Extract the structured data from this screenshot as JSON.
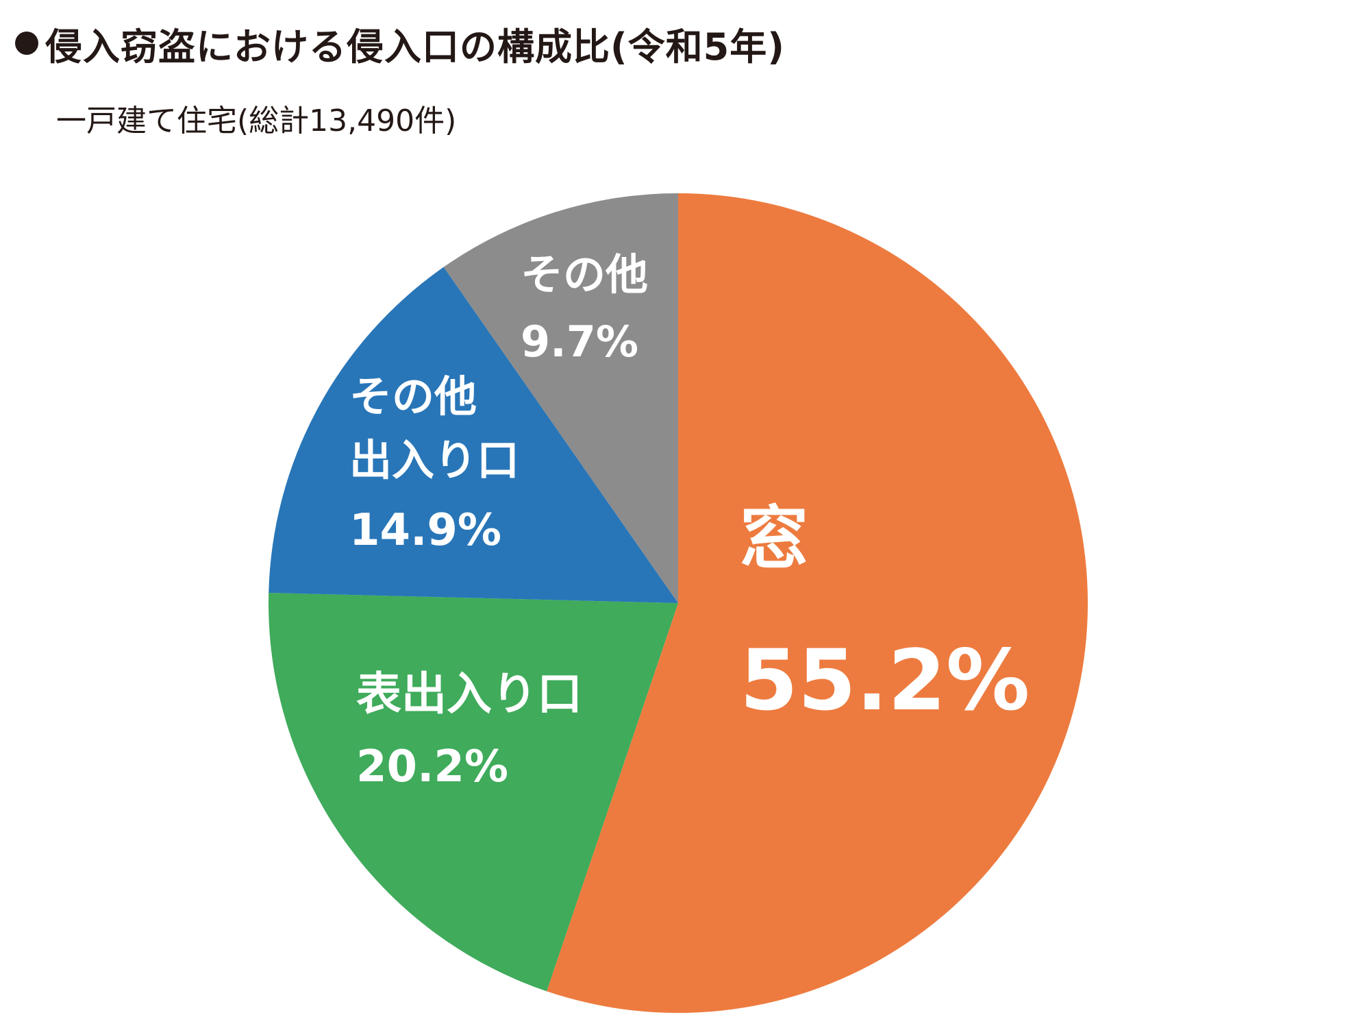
{
  "title": "●侵入窃盗における侵入口の構成比(令和5年)",
  "title_text": "侵入窃盗における侵入口の構成比(令和5年)",
  "subtitle": "一戸建て住宅(総計13,490件)",
  "chart_data": {
    "type": "pie",
    "title": "侵入窃盗における侵入口の構成比(令和5年)",
    "subtitle": "一戸建て住宅(総計13,490件)",
    "total": 13490,
    "start": "12 o'clock",
    "direction": "clockwise",
    "slices": [
      {
        "label": "窓",
        "value": 55.2,
        "value_label": "55.2%",
        "color": "#ed7b3f"
      },
      {
        "label": "表出入り口",
        "value": 20.2,
        "value_label": "20.2%",
        "color": "#3fab5b"
      },
      {
        "label": "その他出入り口",
        "label_lines": [
          "その他",
          "出入り口"
        ],
        "value": 14.9,
        "value_label": "14.9%",
        "color": "#2876b8"
      },
      {
        "label": "その他",
        "value": 9.7,
        "value_label": "9.7%",
        "color": "#8c8c8c"
      }
    ]
  }
}
